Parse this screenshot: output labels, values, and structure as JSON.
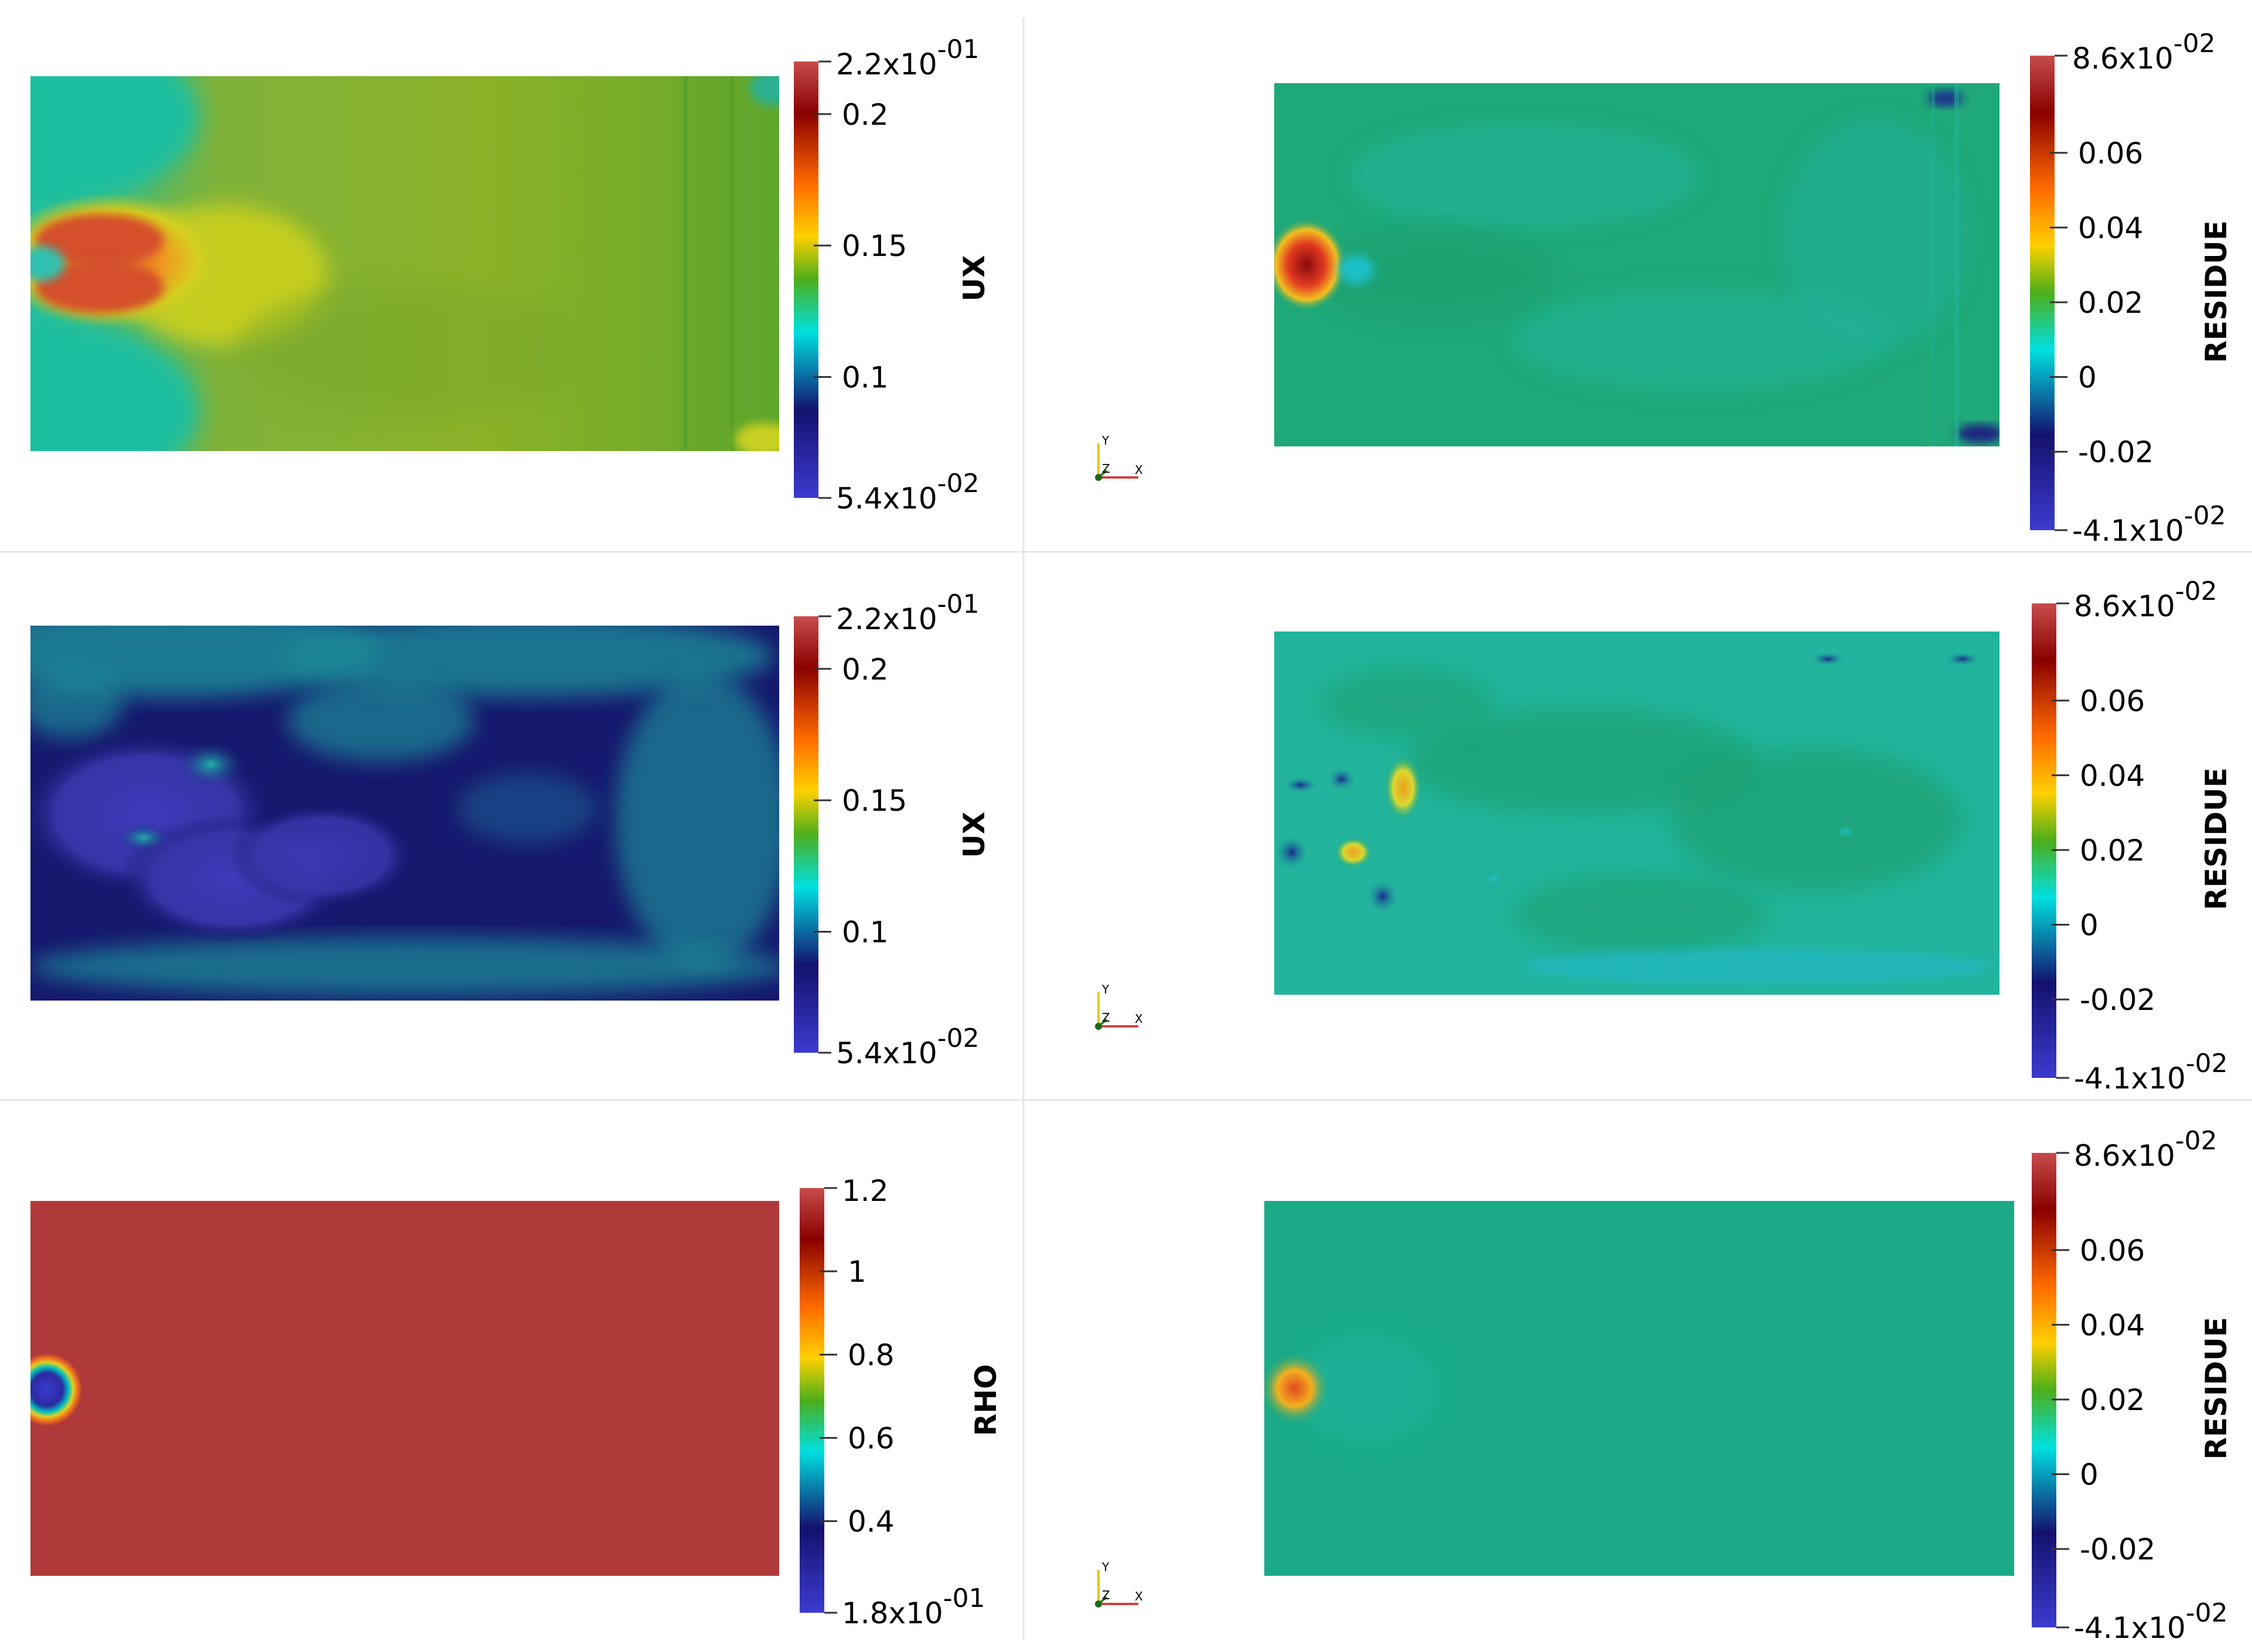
{
  "colors": {
    "cool_warm_jet": [
      "#3b3bd0",
      "#14116e",
      "#00e0e0",
      "#00aa44",
      "#1a8a1a",
      "#e6e600",
      "#ff9900",
      "#ff5500",
      "#8a0000",
      "#c84c4c"
    ],
    "rho_field": "#b03a3a",
    "divider": "#e6e6e6"
  },
  "panels": [
    {
      "id": "ux-top",
      "field_style": "ux_a",
      "colorbar": {
        "title": "UX",
        "max_label": {
          "base": "2.2x10",
          "exp": "-01"
        },
        "min_label": {
          "base": "5.4x10",
          "exp": "-02"
        },
        "ticks": [
          "0.2",
          "0.15",
          "0.1"
        ],
        "tick_values": [
          0.2,
          0.15,
          0.1
        ],
        "range": [
          0.054,
          0.22
        ]
      }
    },
    {
      "id": "residue-top",
      "field_style": "res_a",
      "colorbar": {
        "title": "RESIDUE",
        "max_label": {
          "base": "8.6x10",
          "exp": "-02"
        },
        "min_label": {
          "base": "-4.1x10",
          "exp": "-02"
        },
        "ticks": [
          "0.06",
          "0.04",
          "0.02",
          "0",
          "-0.02"
        ],
        "tick_values": [
          0.06,
          0.04,
          0.02,
          0,
          -0.02
        ],
        "range": [
          -0.041,
          0.086
        ]
      },
      "axes_triad": {
        "y": "Y",
        "z": "Z",
        "x": "X"
      }
    },
    {
      "id": "ux-middle",
      "field_style": "ux_b",
      "colorbar": {
        "title": "UX",
        "max_label": {
          "base": "2.2x10",
          "exp": "-01"
        },
        "min_label": {
          "base": "5.4x10",
          "exp": "-02"
        },
        "ticks": [
          "0.2",
          "0.15",
          "0.1"
        ],
        "tick_values": [
          0.2,
          0.15,
          0.1
        ],
        "range": [
          0.054,
          0.22
        ]
      }
    },
    {
      "id": "residue-middle",
      "field_style": "res_b",
      "colorbar": {
        "title": "RESIDUE",
        "max_label": {
          "base": "8.6x10",
          "exp": "-02"
        },
        "min_label": {
          "base": "-4.1x10",
          "exp": "-02"
        },
        "ticks": [
          "0.06",
          "0.04",
          "0.02",
          "0",
          "-0.02"
        ],
        "tick_values": [
          0.06,
          0.04,
          0.02,
          0,
          -0.02
        ],
        "range": [
          -0.041,
          0.086
        ]
      },
      "axes_triad": {
        "y": "Y",
        "z": "Z",
        "x": "X"
      }
    },
    {
      "id": "rho-bottom",
      "field_style": "rho",
      "colorbar": {
        "title": "RHO",
        "max_label": {
          "base": "1.2",
          "exp": ""
        },
        "min_label": {
          "base": "1.8x10",
          "exp": "-01"
        },
        "ticks": [
          "1",
          "0.8",
          "0.6",
          "0.4"
        ],
        "tick_values": [
          1,
          0.8,
          0.6,
          0.4
        ],
        "range": [
          0.18,
          1.2
        ]
      }
    },
    {
      "id": "residue-bottom",
      "field_style": "res_c",
      "colorbar": {
        "title": "RESIDUE",
        "max_label": {
          "base": "8.6x10",
          "exp": "-02"
        },
        "min_label": {
          "base": "-4.1x10",
          "exp": "-02"
        },
        "ticks": [
          "0.06",
          "0.04",
          "0.02",
          "0",
          "-0.02"
        ],
        "tick_values": [
          0.06,
          0.04,
          0.02,
          0,
          -0.02
        ],
        "range": [
          -0.041,
          0.086
        ]
      },
      "axes_triad": {
        "y": "Y",
        "z": "Z",
        "x": "X"
      }
    }
  ]
}
